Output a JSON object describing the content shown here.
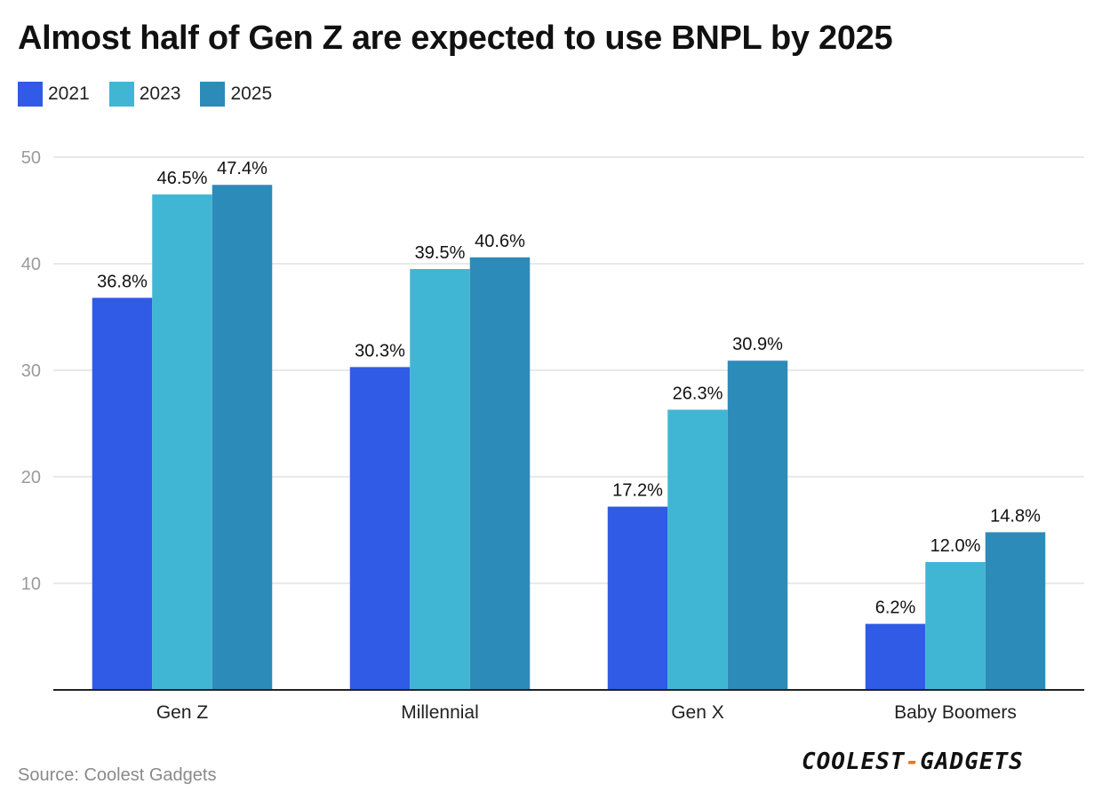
{
  "chart_data": {
    "type": "bar",
    "title": "Almost half of Gen Z are expected to use BNPL by 2025",
    "categories": [
      "Gen Z",
      "Millennial",
      "Gen X",
      "Baby Boomers"
    ],
    "series": [
      {
        "name": "2021",
        "color": "#2f5be6",
        "values": [
          36.8,
          30.3,
          17.2,
          6.2
        ],
        "labels": [
          "36.8%",
          "30.3%",
          "17.2%",
          "6.2%"
        ]
      },
      {
        "name": "2023",
        "color": "#41b6d4",
        "values": [
          46.5,
          39.5,
          26.3,
          12.0
        ],
        "labels": [
          "46.5%",
          "39.5%",
          "26.3%",
          "12.0%"
        ]
      },
      {
        "name": "2025",
        "color": "#2d8bba",
        "values": [
          47.4,
          40.6,
          30.9,
          14.8
        ],
        "labels": [
          "47.4%",
          "40.6%",
          "30.9%",
          "14.8%"
        ]
      }
    ],
    "yticks": [
      "10",
      "20",
      "30",
      "40",
      "50"
    ],
    "ylim": [
      0,
      50
    ],
    "grid": true,
    "legend": "top-left",
    "xlabel": "",
    "ylabel": ""
  },
  "source": "Source: Coolest Gadgets",
  "brand": {
    "left": "COOLEST",
    "dash": "-",
    "right": "GADGETS"
  }
}
